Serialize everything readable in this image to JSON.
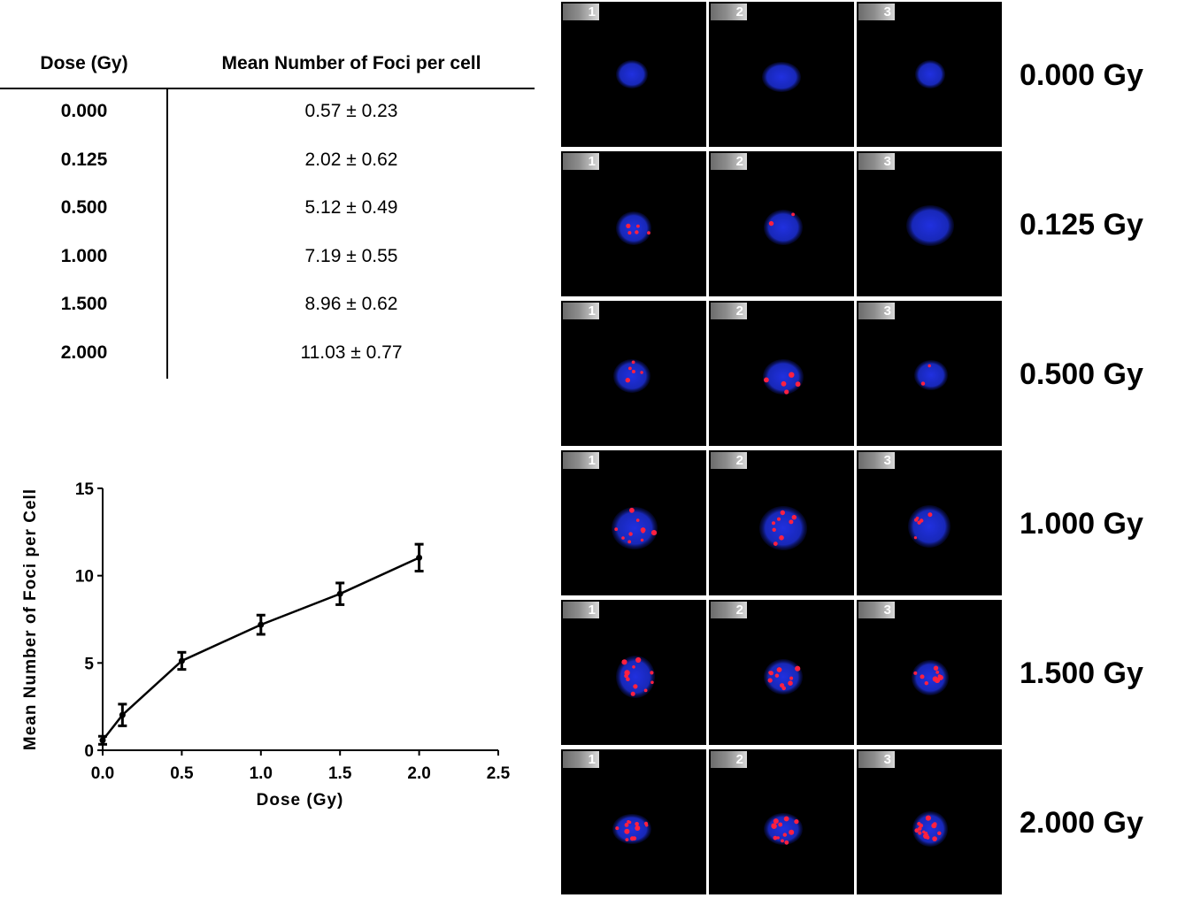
{
  "table": {
    "headers": {
      "dose": "Dose (Gy)",
      "mean": "Mean Number of Foci per cell"
    },
    "rows": [
      {
        "dose": "0.000",
        "mean": "0.57 ± 0.23"
      },
      {
        "dose": "0.125",
        "mean": "2.02 ± 0.62"
      },
      {
        "dose": "0.500",
        "mean": "5.12 ± 0.49"
      },
      {
        "dose": "1.000",
        "mean": "7.19 ± 0.55"
      },
      {
        "dose": "1.500",
        "mean": "8.96 ± 0.62"
      },
      {
        "dose": "2.000",
        "mean": "11.03 ± 0.77"
      }
    ]
  },
  "chart_data": {
    "type": "line",
    "title": "",
    "xlabel": "Dose (Gy)",
    "ylabel": "Mean Number of Foci per Cell",
    "xlim": [
      0,
      2.5
    ],
    "ylim": [
      0,
      15
    ],
    "xticks": [
      "0.0",
      "0.5",
      "1.0",
      "1.5",
      "2.0",
      "2.5"
    ],
    "yticks": [
      "0",
      "5",
      "10",
      "15"
    ],
    "grid": false,
    "series": [
      {
        "x": [
          0.0,
          0.125,
          0.5,
          1.0,
          1.5,
          2.0
        ],
        "y": [
          0.57,
          2.02,
          5.12,
          7.19,
          8.96,
          11.03
        ],
        "error": [
          0.23,
          0.62,
          0.49,
          0.55,
          0.62,
          0.77
        ],
        "color": "#000000"
      }
    ]
  },
  "images": {
    "panel_numbers": [
      "1",
      "2",
      "3"
    ],
    "nucleus_color": "#2030e0",
    "focus_color": "#ff2040",
    "rows": [
      {
        "label": "0.000 Gy"
      },
      {
        "label": "0.125 Gy"
      },
      {
        "label": "0.500 Gy"
      },
      {
        "label": "1.000 Gy"
      },
      {
        "label": "1.500 Gy"
      },
      {
        "label": "2.000 Gy"
      }
    ]
  }
}
